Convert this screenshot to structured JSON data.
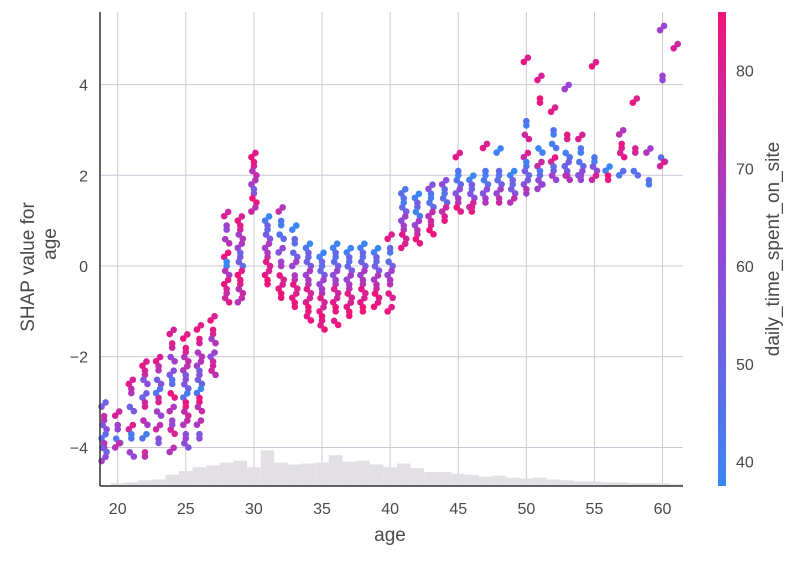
{
  "chart_data": {
    "type": "scatter",
    "title": "",
    "xlabel": "age",
    "ylabel_lines": [
      "SHAP value for",
      "age"
    ],
    "xlim": [
      18.7,
      61.5
    ],
    "ylim": [
      -4.85,
      5.6
    ],
    "x_ticks": [
      20,
      25,
      30,
      35,
      40,
      45,
      50,
      55,
      60
    ],
    "y_ticks": [
      -4,
      -2,
      0,
      2,
      4
    ],
    "grid": true,
    "colors": {
      "low": "#3a86f5",
      "high": "#f0147a",
      "grid": "#cfc6d6",
      "axis": "#333333",
      "histogram": "#e3e0e5"
    },
    "colorbar": {
      "label": "daily_time_spent_on_site",
      "range": [
        37.5,
        86
      ],
      "ticks": [
        40,
        50,
        60,
        70,
        80
      ]
    },
    "histogram_bins": [
      {
        "x": 19,
        "h": 0.008
      },
      {
        "x": 20,
        "h": 0.03
      },
      {
        "x": 21,
        "h": 0.04
      },
      {
        "x": 22,
        "h": 0.06
      },
      {
        "x": 23,
        "h": 0.07
      },
      {
        "x": 24,
        "h": 0.12
      },
      {
        "x": 25,
        "h": 0.16
      },
      {
        "x": 26,
        "h": 0.2
      },
      {
        "x": 27,
        "h": 0.22
      },
      {
        "x": 28,
        "h": 0.25
      },
      {
        "x": 29,
        "h": 0.27
      },
      {
        "x": 30,
        "h": 0.2
      },
      {
        "x": 31,
        "h": 0.38
      },
      {
        "x": 32,
        "h": 0.25
      },
      {
        "x": 33,
        "h": 0.23
      },
      {
        "x": 34,
        "h": 0.24
      },
      {
        "x": 35,
        "h": 0.25
      },
      {
        "x": 36,
        "h": 0.33
      },
      {
        "x": 37,
        "h": 0.26
      },
      {
        "x": 38,
        "h": 0.27
      },
      {
        "x": 39,
        "h": 0.23
      },
      {
        "x": 40,
        "h": 0.2
      },
      {
        "x": 41,
        "h": 0.24
      },
      {
        "x": 42,
        "h": 0.19
      },
      {
        "x": 43,
        "h": 0.15
      },
      {
        "x": 44,
        "h": 0.15
      },
      {
        "x": 45,
        "h": 0.13
      },
      {
        "x": 46,
        "h": 0.12
      },
      {
        "x": 47,
        "h": 0.1
      },
      {
        "x": 48,
        "h": 0.11
      },
      {
        "x": 49,
        "h": 0.09
      },
      {
        "x": 50,
        "h": 0.08
      },
      {
        "x": 51,
        "h": 0.09
      },
      {
        "x": 52,
        "h": 0.07
      },
      {
        "x": 53,
        "h": 0.06
      },
      {
        "x": 54,
        "h": 0.05
      },
      {
        "x": 55,
        "h": 0.05
      },
      {
        "x": 56,
        "h": 0.04
      },
      {
        "x": 57,
        "h": 0.04
      },
      {
        "x": 58,
        "h": 0.03
      },
      {
        "x": 59,
        "h": 0.03
      },
      {
        "x": 60,
        "h": 0.03
      },
      {
        "x": 61,
        "h": 0.02
      }
    ],
    "columns": [
      {
        "x": 19,
        "ys": [
          -3.1,
          -3.4,
          -3.6,
          -3.8,
          -4.0,
          -4.1,
          -4.3
        ],
        "cs": [
          55,
          70,
          60,
          45,
          75,
          50,
          65
        ]
      },
      {
        "x": 20,
        "ys": [
          -3.3,
          -3.6,
          -3.9,
          -4.0
        ],
        "cs": [
          80,
          62,
          48,
          70
        ]
      },
      {
        "x": 21,
        "ys": [
          -2.6,
          -2.8,
          -3.2,
          -3.6,
          -3.8,
          -4.2
        ],
        "cs": [
          82,
          70,
          55,
          78,
          45,
          60
        ]
      },
      {
        "x": 22,
        "ys": [
          -2.2,
          -2.4,
          -2.6,
          -2.9,
          -3.1,
          -3.5,
          -3.8,
          -4.2
        ],
        "cs": [
          85,
          75,
          60,
          50,
          80,
          68,
          45,
          72
        ]
      },
      {
        "x": 23,
        "ys": [
          -2.1,
          -2.3,
          -2.6,
          -2.8,
          -3.0,
          -3.3,
          -3.6,
          -3.9
        ],
        "cs": [
          84,
          70,
          58,
          42,
          80,
          62,
          76,
          55
        ]
      },
      {
        "x": 24,
        "ys": [
          -1.5,
          -1.8,
          -2.1,
          -2.4,
          -2.6,
          -2.9,
          -3.2,
          -3.5,
          -3.7,
          -4.1
        ],
        "cs": [
          82,
          76,
          66,
          55,
          48,
          84,
          72,
          60,
          80,
          68
        ]
      },
      {
        "x": 25,
        "ys": [
          -1.6,
          -1.9,
          -2.1,
          -2.3,
          -2.5,
          -2.7,
          -2.9,
          -3.1,
          -3.3,
          -3.5,
          -3.8,
          -4.0
        ],
        "cs": [
          86,
          80,
          74,
          68,
          60,
          52,
          45,
          84,
          78,
          70,
          64,
          56
        ]
      },
      {
        "x": 26,
        "ys": [
          -1.4,
          -1.7,
          -2.0,
          -2.2,
          -2.4,
          -2.6,
          -2.8,
          -3.0,
          -3.2,
          -3.5,
          -3.8
        ],
        "cs": [
          85,
          79,
          72,
          66,
          58,
          50,
          42,
          84,
          76,
          68,
          60
        ]
      },
      {
        "x": 27,
        "ys": [
          -1.2,
          -1.5,
          -1.7,
          -2.0,
          -2.2,
          -2.4
        ],
        "cs": [
          84,
          78,
          70,
          60,
          80,
          72
        ]
      },
      {
        "x": 28,
        "ys": [
          1.1,
          0.8,
          0.5,
          0.2,
          0.0,
          -0.2,
          -0.4,
          -0.6,
          -0.8
        ],
        "cs": [
          80,
          60,
          72,
          84,
          40,
          66,
          86,
          74,
          82
        ]
      },
      {
        "x": 29,
        "ys": [
          1.0,
          0.8,
          0.6,
          0.4,
          0.2,
          0.0,
          -0.2,
          -0.4,
          -0.6,
          -0.8
        ],
        "cs": [
          84,
          78,
          70,
          64,
          56,
          48,
          86,
          80,
          76,
          70
        ]
      },
      {
        "x": 30,
        "ys": [
          2.4,
          2.2,
          2.0,
          1.8,
          1.6,
          1.4,
          1.2
        ],
        "cs": [
          86,
          80,
          74,
          66,
          58,
          84,
          76
        ]
      },
      {
        "x": 31,
        "ys": [
          1.0,
          0.8,
          0.6,
          0.4,
          0.2,
          0.0,
          -0.2,
          -0.4
        ],
        "cs": [
          42,
          48,
          56,
          64,
          72,
          80,
          84,
          86
        ]
      },
      {
        "x": 32,
        "ys": [
          1.2,
          0.9,
          0.6,
          0.3,
          0.0,
          -0.3,
          -0.5,
          -0.7
        ],
        "cs": [
          74,
          40,
          48,
          58,
          68,
          80,
          84,
          86
        ]
      },
      {
        "x": 33,
        "ys": [
          0.8,
          0.5,
          0.2,
          0.0,
          -0.3,
          -0.5,
          -0.7,
          -0.9
        ],
        "cs": [
          40,
          46,
          54,
          62,
          72,
          80,
          84,
          86
        ]
      },
      {
        "x": 34,
        "ys": [
          0.4,
          0.2,
          0.0,
          -0.2,
          -0.4,
          -0.6,
          -0.8,
          -1.0,
          -1.2
        ],
        "cs": [
          42,
          48,
          56,
          64,
          72,
          78,
          82,
          84,
          86
        ]
      },
      {
        "x": 35,
        "ys": [
          0.2,
          0.0,
          -0.2,
          -0.4,
          -0.6,
          -0.8,
          -1.0,
          -1.2,
          -1.4
        ],
        "cs": [
          40,
          46,
          54,
          62,
          70,
          78,
          82,
          84,
          86
        ]
      },
      {
        "x": 36,
        "ys": [
          0.4,
          0.2,
          0.0,
          -0.2,
          -0.4,
          -0.6,
          -0.8,
          -1.0,
          -1.3
        ],
        "cs": [
          40,
          44,
          52,
          60,
          68,
          76,
          82,
          84,
          86
        ]
      },
      {
        "x": 37,
        "ys": [
          0.3,
          0.1,
          -0.1,
          -0.3,
          -0.5,
          -0.7,
          -0.9,
          -1.1
        ],
        "cs": [
          40,
          46,
          54,
          62,
          72,
          80,
          84,
          86
        ]
      },
      {
        "x": 38,
        "ys": [
          0.4,
          0.2,
          0.0,
          -0.2,
          -0.4,
          -0.6,
          -0.8,
          -1.0
        ],
        "cs": [
          40,
          46,
          54,
          64,
          72,
          80,
          84,
          86
        ]
      },
      {
        "x": 39,
        "ys": [
          0.3,
          0.1,
          -0.1,
          -0.3,
          -0.5,
          -0.7,
          -0.9
        ],
        "cs": [
          40,
          48,
          56,
          66,
          76,
          84,
          86
        ]
      },
      {
        "x": 40,
        "ys": [
          0.6,
          0.3,
          0.0,
          -0.2,
          -0.4,
          -0.7,
          -1.0
        ],
        "cs": [
          84,
          44,
          52,
          62,
          72,
          80,
          86
        ]
      },
      {
        "x": 41,
        "ys": [
          1.6,
          1.4,
          1.2,
          1.0,
          0.8,
          0.6,
          0.4
        ],
        "cs": [
          46,
          40,
          52,
          60,
          70,
          78,
          84
        ]
      },
      {
        "x": 42,
        "ys": [
          1.5,
          1.3,
          1.1,
          0.9,
          0.7,
          0.5
        ],
        "cs": [
          40,
          50,
          42,
          62,
          76,
          84
        ]
      },
      {
        "x": 43,
        "ys": [
          1.7,
          1.5,
          1.3,
          1.1,
          0.9,
          0.7
        ],
        "cs": [
          60,
          40,
          48,
          70,
          80,
          86
        ]
      },
      {
        "x": 44,
        "ys": [
          1.8,
          1.6,
          1.4,
          1.2,
          1.0
        ],
        "cs": [
          62,
          44,
          50,
          72,
          84
        ]
      },
      {
        "x": 45,
        "ys": [
          2.4,
          2.0,
          1.8,
          1.6,
          1.4,
          1.2
        ],
        "cs": [
          84,
          40,
          48,
          56,
          70,
          82
        ]
      },
      {
        "x": 46,
        "ys": [
          1.9,
          1.7,
          1.5,
          1.3,
          1.2
        ],
        "cs": [
          40,
          50,
          60,
          74,
          84
        ]
      },
      {
        "x": 47,
        "ys": [
          2.6,
          2.0,
          1.8,
          1.6,
          1.4
        ],
        "cs": [
          84,
          40,
          46,
          56,
          70
        ]
      },
      {
        "x": 48,
        "ys": [
          2.5,
          2.0,
          1.8,
          1.6,
          1.4
        ],
        "cs": [
          40,
          44,
          52,
          62,
          76
        ]
      },
      {
        "x": 49,
        "ys": [
          2.0,
          1.8,
          1.6,
          1.4
        ],
        "cs": [
          40,
          48,
          58,
          70
        ]
      },
      {
        "x": 50,
        "ys": [
          4.5,
          3.1,
          2.8,
          2.4,
          2.2,
          2.0,
          1.8,
          1.6
        ],
        "cs": [
          84,
          40,
          80,
          76,
          44,
          50,
          58,
          66
        ]
      },
      {
        "x": 51,
        "ys": [
          4.1,
          3.6,
          2.5,
          2.2,
          2.0,
          1.8,
          1.7
        ],
        "cs": [
          82,
          84,
          40,
          72,
          48,
          56,
          66
        ]
      },
      {
        "x": 52,
        "ys": [
          3.4,
          2.9,
          2.6,
          2.3,
          2.1,
          1.9
        ],
        "cs": [
          84,
          40,
          44,
          80,
          52,
          62
        ]
      },
      {
        "x": 53,
        "ys": [
          3.9,
          2.8,
          2.4,
          2.2,
          2.0,
          1.9
        ],
        "cs": [
          66,
          80,
          44,
          50,
          58,
          70
        ]
      },
      {
        "x": 54,
        "ys": [
          2.8,
          2.5,
          2.2,
          2.0,
          1.9
        ],
        "cs": [
          82,
          40,
          48,
          56,
          64
        ]
      },
      {
        "x": 55,
        "ys": [
          4.4,
          2.3,
          2.1,
          1.9
        ],
        "cs": [
          84,
          40,
          60,
          76
        ]
      },
      {
        "x": 56,
        "ys": [
          2.1,
          1.9
        ],
        "cs": [
          40,
          84
        ]
      },
      {
        "x": 57,
        "ys": [
          2.9,
          2.6,
          2.4,
          2.0
        ],
        "cs": [
          72,
          80,
          84,
          42
        ]
      },
      {
        "x": 58,
        "ys": [
          3.6,
          2.5,
          2.0
        ],
        "cs": [
          84,
          76,
          48
        ]
      },
      {
        "x": 59,
        "ys": [
          2.5,
          1.8
        ],
        "cs": [
          70,
          42
        ]
      },
      {
        "x": 60,
        "ys": [
          5.2,
          4.1,
          2.3,
          2.2
        ],
        "cs": [
          66,
          60,
          50,
          78
        ]
      },
      {
        "x": 61,
        "ys": [
          4.8
        ],
        "cs": [
          80
        ]
      }
    ]
  }
}
